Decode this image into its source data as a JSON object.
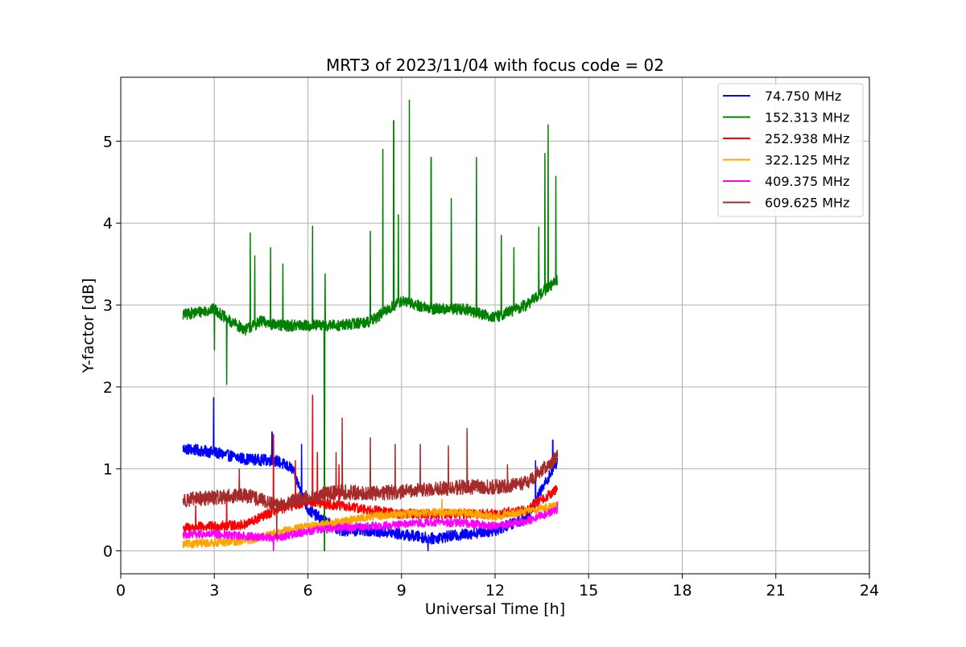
{
  "chart_data": {
    "type": "line",
    "title": "MRT3 of 2023/11/04 with focus code = 02",
    "xlabel": "Universal Time [h]",
    "ylabel": "Y-factor [dB]",
    "xlim": [
      0,
      24
    ],
    "ylim": [
      -0.28,
      5.78
    ],
    "xticks": [
      0,
      3,
      6,
      9,
      12,
      15,
      18,
      21,
      24
    ],
    "yticks": [
      0,
      1,
      2,
      3,
      4,
      5
    ],
    "grid": true,
    "legend_position": "top-right",
    "x_start": 2.0,
    "x_end": 14.0,
    "series": [
      {
        "name": " 74.750 MHz",
        "color": "#0000ff",
        "noise": 0.07,
        "profile": [
          [
            2.0,
            1.25
          ],
          [
            3.0,
            1.2
          ],
          [
            4.0,
            1.12
          ],
          [
            5.0,
            1.1
          ],
          [
            5.5,
            1.0
          ],
          [
            6.0,
            0.5
          ],
          [
            7.0,
            0.25
          ],
          [
            8.0,
            0.25
          ],
          [
            9.0,
            0.2
          ],
          [
            10.0,
            0.15
          ],
          [
            11.0,
            0.2
          ],
          [
            12.0,
            0.25
          ],
          [
            13.0,
            0.4
          ],
          [
            14.0,
            1.1
          ]
        ],
        "spikes": [
          [
            2.98,
            1.87
          ],
          [
            4.85,
            1.45
          ],
          [
            5.8,
            1.3
          ],
          [
            13.85,
            1.35
          ],
          [
            13.3,
            1.1
          ],
          [
            9.85,
            0.0
          ]
        ]
      },
      {
        "name": "152.313 MHz",
        "color": "#008000",
        "noise": 0.07,
        "profile": [
          [
            2.0,
            2.88
          ],
          [
            3.0,
            2.95
          ],
          [
            3.5,
            2.8
          ],
          [
            4.0,
            2.7
          ],
          [
            4.5,
            2.8
          ],
          [
            5.0,
            2.75
          ],
          [
            6.0,
            2.75
          ],
          [
            7.0,
            2.75
          ],
          [
            8.0,
            2.8
          ],
          [
            9.0,
            3.05
          ],
          [
            10.0,
            2.95
          ],
          [
            11.0,
            2.95
          ],
          [
            12.0,
            2.85
          ],
          [
            13.0,
            3.0
          ],
          [
            14.0,
            3.3
          ]
        ],
        "spikes": [
          [
            3.0,
            2.45
          ],
          [
            3.4,
            2.03
          ],
          [
            4.15,
            3.88
          ],
          [
            4.3,
            3.6
          ],
          [
            4.8,
            3.7
          ],
          [
            5.2,
            3.5
          ],
          [
            6.15,
            3.96
          ],
          [
            6.55,
            3.38
          ],
          [
            6.53,
            0.0
          ],
          [
            8.0,
            3.9
          ],
          [
            8.4,
            4.9
          ],
          [
            8.9,
            4.1
          ],
          [
            8.75,
            5.25
          ],
          [
            9.25,
            5.5
          ],
          [
            9.95,
            4.8
          ],
          [
            10.6,
            4.3
          ],
          [
            11.4,
            4.8
          ],
          [
            12.2,
            3.85
          ],
          [
            12.6,
            3.7
          ],
          [
            13.4,
            3.95
          ],
          [
            13.6,
            4.85
          ],
          [
            13.7,
            5.2
          ],
          [
            13.95,
            4.57
          ]
        ]
      },
      {
        "name": "252.938 MHz",
        "color": "#ff0000",
        "noise": 0.06,
        "profile": [
          [
            2.0,
            0.28
          ],
          [
            3.0,
            0.3
          ],
          [
            4.0,
            0.32
          ],
          [
            5.0,
            0.5
          ],
          [
            6.0,
            0.6
          ],
          [
            7.0,
            0.55
          ],
          [
            8.0,
            0.5
          ],
          [
            9.0,
            0.45
          ],
          [
            10.0,
            0.45
          ],
          [
            11.0,
            0.45
          ],
          [
            12.0,
            0.45
          ],
          [
            13.0,
            0.5
          ],
          [
            14.0,
            0.75
          ]
        ],
        "spikes": [
          [
            2.4,
            0.55
          ],
          [
            3.4,
            0.7
          ],
          [
            4.9,
            1.42
          ],
          [
            6.15,
            1.9
          ],
          [
            6.3,
            1.2
          ],
          [
            5.6,
            1.1
          ],
          [
            7.0,
            1.05
          ]
        ]
      },
      {
        "name": "322.125 MHz",
        "color": "#ffa500",
        "noise": 0.05,
        "profile": [
          [
            2.0,
            0.08
          ],
          [
            3.0,
            0.1
          ],
          [
            4.0,
            0.12
          ],
          [
            5.0,
            0.22
          ],
          [
            6.0,
            0.3
          ],
          [
            7.0,
            0.35
          ],
          [
            8.0,
            0.42
          ],
          [
            9.0,
            0.45
          ],
          [
            10.0,
            0.47
          ],
          [
            11.0,
            0.47
          ],
          [
            12.0,
            0.42
          ],
          [
            13.0,
            0.48
          ],
          [
            14.0,
            0.55
          ]
        ],
        "spikes": [
          [
            4.8,
            0.2
          ],
          [
            10.3,
            0.63
          ]
        ]
      },
      {
        "name": "409.375 MHz",
        "color": "#ff00ff",
        "noise": 0.05,
        "profile": [
          [
            2.0,
            0.2
          ],
          [
            3.0,
            0.2
          ],
          [
            4.0,
            0.18
          ],
          [
            5.0,
            0.16
          ],
          [
            6.0,
            0.24
          ],
          [
            7.0,
            0.28
          ],
          [
            8.0,
            0.3
          ],
          [
            9.0,
            0.32
          ],
          [
            10.0,
            0.35
          ],
          [
            11.0,
            0.34
          ],
          [
            12.0,
            0.3
          ],
          [
            13.0,
            0.36
          ],
          [
            14.0,
            0.5
          ]
        ],
        "spikes": [
          [
            4.9,
            0.0
          ],
          [
            14.0,
            0.6
          ]
        ]
      },
      {
        "name": "609.625 MHz",
        "color": "#a52a2a",
        "noise": 0.09,
        "profile": [
          [
            2.0,
            0.62
          ],
          [
            3.0,
            0.65
          ],
          [
            4.0,
            0.68
          ],
          [
            5.0,
            0.55
          ],
          [
            6.0,
            0.65
          ],
          [
            7.0,
            0.72
          ],
          [
            8.0,
            0.7
          ],
          [
            9.0,
            0.72
          ],
          [
            10.0,
            0.75
          ],
          [
            11.0,
            0.78
          ],
          [
            12.0,
            0.78
          ],
          [
            13.0,
            0.82
          ],
          [
            14.0,
            1.15
          ]
        ],
        "spikes": [
          [
            3.8,
            1.0
          ],
          [
            6.9,
            1.2
          ],
          [
            7.1,
            1.62
          ],
          [
            8.0,
            1.38
          ],
          [
            8.8,
            1.3
          ],
          [
            9.6,
            1.3
          ],
          [
            10.5,
            1.28
          ],
          [
            11.1,
            1.49
          ],
          [
            12.4,
            1.05
          ],
          [
            5.0,
            0.15
          ]
        ]
      }
    ]
  }
}
